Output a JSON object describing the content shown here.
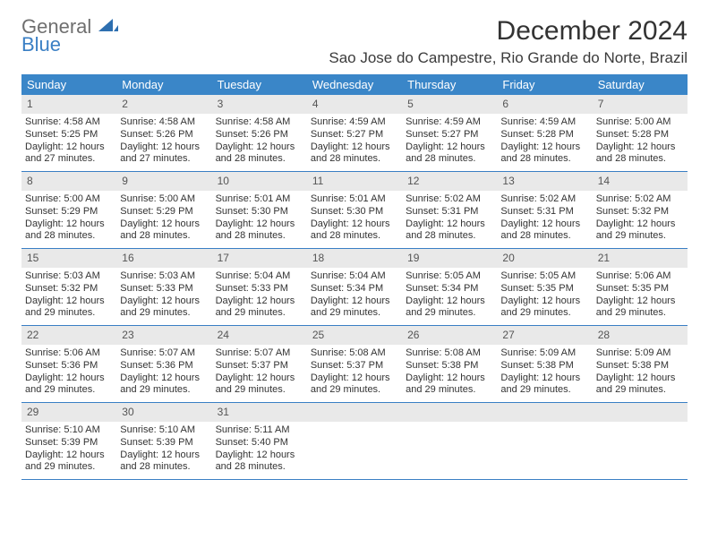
{
  "logo": {
    "word1": "General",
    "word2": "Blue"
  },
  "title": "December 2024",
  "location": "Sao Jose do Campestre, Rio Grande do Norte, Brazil",
  "colors": {
    "header_bg": "#3a86c8",
    "header_text": "#ffffff",
    "daynum_bg": "#e9e9e9",
    "week_border": "#3a7fc4",
    "logo_gray": "#6f6f6f",
    "logo_blue": "#3a7fc4"
  },
  "weekdays": [
    "Sunday",
    "Monday",
    "Tuesday",
    "Wednesday",
    "Thursday",
    "Friday",
    "Saturday"
  ],
  "weeks": [
    [
      {
        "n": "1",
        "sr": "Sunrise: 4:58 AM",
        "ss": "Sunset: 5:25 PM",
        "d1": "Daylight: 12 hours",
        "d2": "and 27 minutes."
      },
      {
        "n": "2",
        "sr": "Sunrise: 4:58 AM",
        "ss": "Sunset: 5:26 PM",
        "d1": "Daylight: 12 hours",
        "d2": "and 27 minutes."
      },
      {
        "n": "3",
        "sr": "Sunrise: 4:58 AM",
        "ss": "Sunset: 5:26 PM",
        "d1": "Daylight: 12 hours",
        "d2": "and 28 minutes."
      },
      {
        "n": "4",
        "sr": "Sunrise: 4:59 AM",
        "ss": "Sunset: 5:27 PM",
        "d1": "Daylight: 12 hours",
        "d2": "and 28 minutes."
      },
      {
        "n": "5",
        "sr": "Sunrise: 4:59 AM",
        "ss": "Sunset: 5:27 PM",
        "d1": "Daylight: 12 hours",
        "d2": "and 28 minutes."
      },
      {
        "n": "6",
        "sr": "Sunrise: 4:59 AM",
        "ss": "Sunset: 5:28 PM",
        "d1": "Daylight: 12 hours",
        "d2": "and 28 minutes."
      },
      {
        "n": "7",
        "sr": "Sunrise: 5:00 AM",
        "ss": "Sunset: 5:28 PM",
        "d1": "Daylight: 12 hours",
        "d2": "and 28 minutes."
      }
    ],
    [
      {
        "n": "8",
        "sr": "Sunrise: 5:00 AM",
        "ss": "Sunset: 5:29 PM",
        "d1": "Daylight: 12 hours",
        "d2": "and 28 minutes."
      },
      {
        "n": "9",
        "sr": "Sunrise: 5:00 AM",
        "ss": "Sunset: 5:29 PM",
        "d1": "Daylight: 12 hours",
        "d2": "and 28 minutes."
      },
      {
        "n": "10",
        "sr": "Sunrise: 5:01 AM",
        "ss": "Sunset: 5:30 PM",
        "d1": "Daylight: 12 hours",
        "d2": "and 28 minutes."
      },
      {
        "n": "11",
        "sr": "Sunrise: 5:01 AM",
        "ss": "Sunset: 5:30 PM",
        "d1": "Daylight: 12 hours",
        "d2": "and 28 minutes."
      },
      {
        "n": "12",
        "sr": "Sunrise: 5:02 AM",
        "ss": "Sunset: 5:31 PM",
        "d1": "Daylight: 12 hours",
        "d2": "and 28 minutes."
      },
      {
        "n": "13",
        "sr": "Sunrise: 5:02 AM",
        "ss": "Sunset: 5:31 PM",
        "d1": "Daylight: 12 hours",
        "d2": "and 28 minutes."
      },
      {
        "n": "14",
        "sr": "Sunrise: 5:02 AM",
        "ss": "Sunset: 5:32 PM",
        "d1": "Daylight: 12 hours",
        "d2": "and 29 minutes."
      }
    ],
    [
      {
        "n": "15",
        "sr": "Sunrise: 5:03 AM",
        "ss": "Sunset: 5:32 PM",
        "d1": "Daylight: 12 hours",
        "d2": "and 29 minutes."
      },
      {
        "n": "16",
        "sr": "Sunrise: 5:03 AM",
        "ss": "Sunset: 5:33 PM",
        "d1": "Daylight: 12 hours",
        "d2": "and 29 minutes."
      },
      {
        "n": "17",
        "sr": "Sunrise: 5:04 AM",
        "ss": "Sunset: 5:33 PM",
        "d1": "Daylight: 12 hours",
        "d2": "and 29 minutes."
      },
      {
        "n": "18",
        "sr": "Sunrise: 5:04 AM",
        "ss": "Sunset: 5:34 PM",
        "d1": "Daylight: 12 hours",
        "d2": "and 29 minutes."
      },
      {
        "n": "19",
        "sr": "Sunrise: 5:05 AM",
        "ss": "Sunset: 5:34 PM",
        "d1": "Daylight: 12 hours",
        "d2": "and 29 minutes."
      },
      {
        "n": "20",
        "sr": "Sunrise: 5:05 AM",
        "ss": "Sunset: 5:35 PM",
        "d1": "Daylight: 12 hours",
        "d2": "and 29 minutes."
      },
      {
        "n": "21",
        "sr": "Sunrise: 5:06 AM",
        "ss": "Sunset: 5:35 PM",
        "d1": "Daylight: 12 hours",
        "d2": "and 29 minutes."
      }
    ],
    [
      {
        "n": "22",
        "sr": "Sunrise: 5:06 AM",
        "ss": "Sunset: 5:36 PM",
        "d1": "Daylight: 12 hours",
        "d2": "and 29 minutes."
      },
      {
        "n": "23",
        "sr": "Sunrise: 5:07 AM",
        "ss": "Sunset: 5:36 PM",
        "d1": "Daylight: 12 hours",
        "d2": "and 29 minutes."
      },
      {
        "n": "24",
        "sr": "Sunrise: 5:07 AM",
        "ss": "Sunset: 5:37 PM",
        "d1": "Daylight: 12 hours",
        "d2": "and 29 minutes."
      },
      {
        "n": "25",
        "sr": "Sunrise: 5:08 AM",
        "ss": "Sunset: 5:37 PM",
        "d1": "Daylight: 12 hours",
        "d2": "and 29 minutes."
      },
      {
        "n": "26",
        "sr": "Sunrise: 5:08 AM",
        "ss": "Sunset: 5:38 PM",
        "d1": "Daylight: 12 hours",
        "d2": "and 29 minutes."
      },
      {
        "n": "27",
        "sr": "Sunrise: 5:09 AM",
        "ss": "Sunset: 5:38 PM",
        "d1": "Daylight: 12 hours",
        "d2": "and 29 minutes."
      },
      {
        "n": "28",
        "sr": "Sunrise: 5:09 AM",
        "ss": "Sunset: 5:38 PM",
        "d1": "Daylight: 12 hours",
        "d2": "and 29 minutes."
      }
    ],
    [
      {
        "n": "29",
        "sr": "Sunrise: 5:10 AM",
        "ss": "Sunset: 5:39 PM",
        "d1": "Daylight: 12 hours",
        "d2": "and 29 minutes."
      },
      {
        "n": "30",
        "sr": "Sunrise: 5:10 AM",
        "ss": "Sunset: 5:39 PM",
        "d1": "Daylight: 12 hours",
        "d2": "and 28 minutes."
      },
      {
        "n": "31",
        "sr": "Sunrise: 5:11 AM",
        "ss": "Sunset: 5:40 PM",
        "d1": "Daylight: 12 hours",
        "d2": "and 28 minutes."
      },
      {
        "empty": true
      },
      {
        "empty": true
      },
      {
        "empty": true
      },
      {
        "empty": true
      }
    ]
  ]
}
